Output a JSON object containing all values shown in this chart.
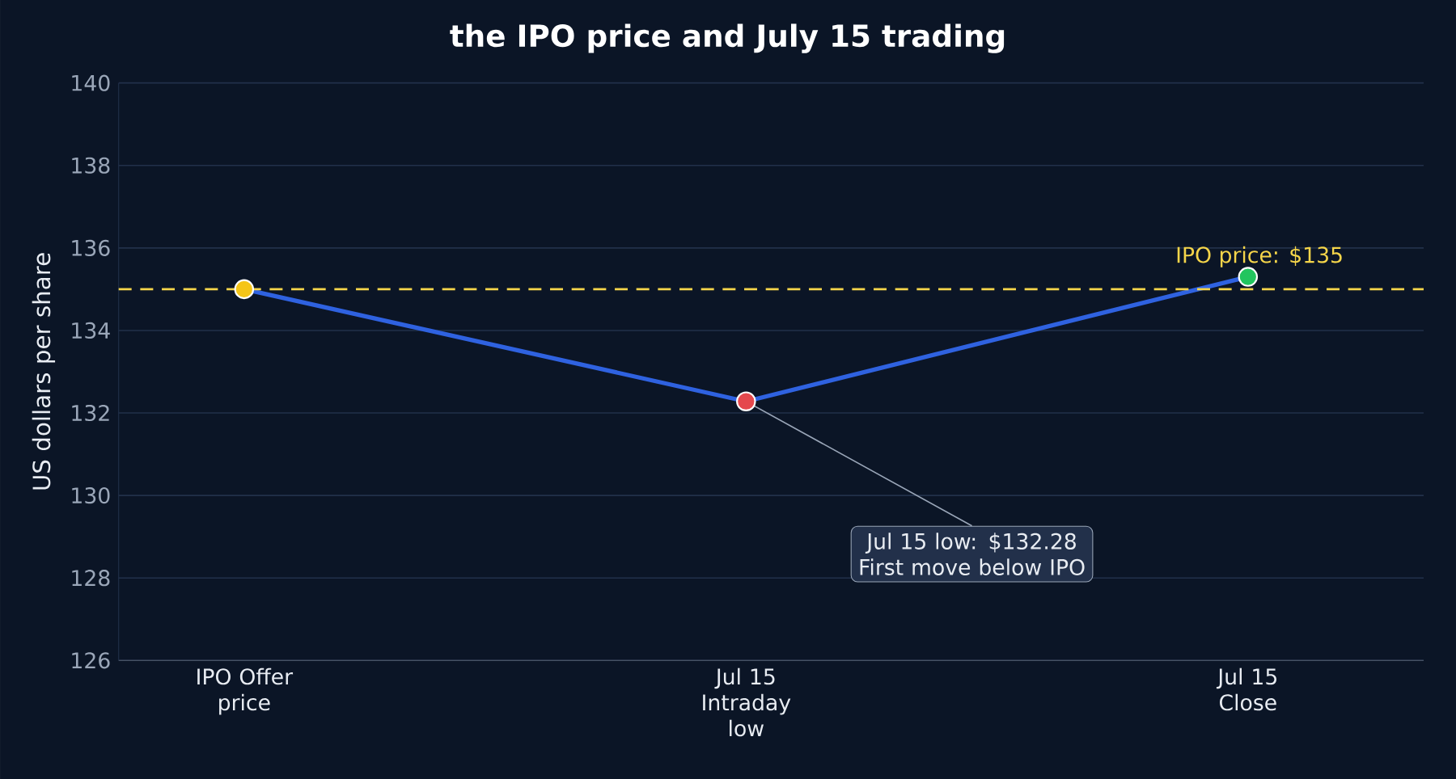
{
  "chart_data": {
    "type": "line",
    "title": "the IPO price and July 15 trading",
    "ylabel": "US dollars per share",
    "categories": [
      "IPO Offer price",
      "Jul 15 Intraday low",
      "Jul 15 Close"
    ],
    "series": [
      {
        "color": "#2f62e0",
        "colors": [
          "#f5c518",
          "#e5484d",
          "#22c55e"
        ],
        "values": [
          135,
          132.28,
          135.3
        ]
      }
    ],
    "ylim": [
      126,
      140
    ],
    "yticks": [
      126,
      128,
      130,
      132,
      134,
      136,
      138,
      140
    ],
    "grid": "y",
    "marker": "circle",
    "line_style": "solid",
    "ref_lines": [
      {
        "axis": "y",
        "value": 135,
        "label": "IPO price: $135",
        "color": "#f5d54a",
        "line_style": "dashed"
      }
    ],
    "annotations": [
      {
        "text": "Jul 15 low: $132.28 First move below IPO",
        "x": "Jul 15 Intraday low",
        "y": 132.28
      }
    ]
  }
}
